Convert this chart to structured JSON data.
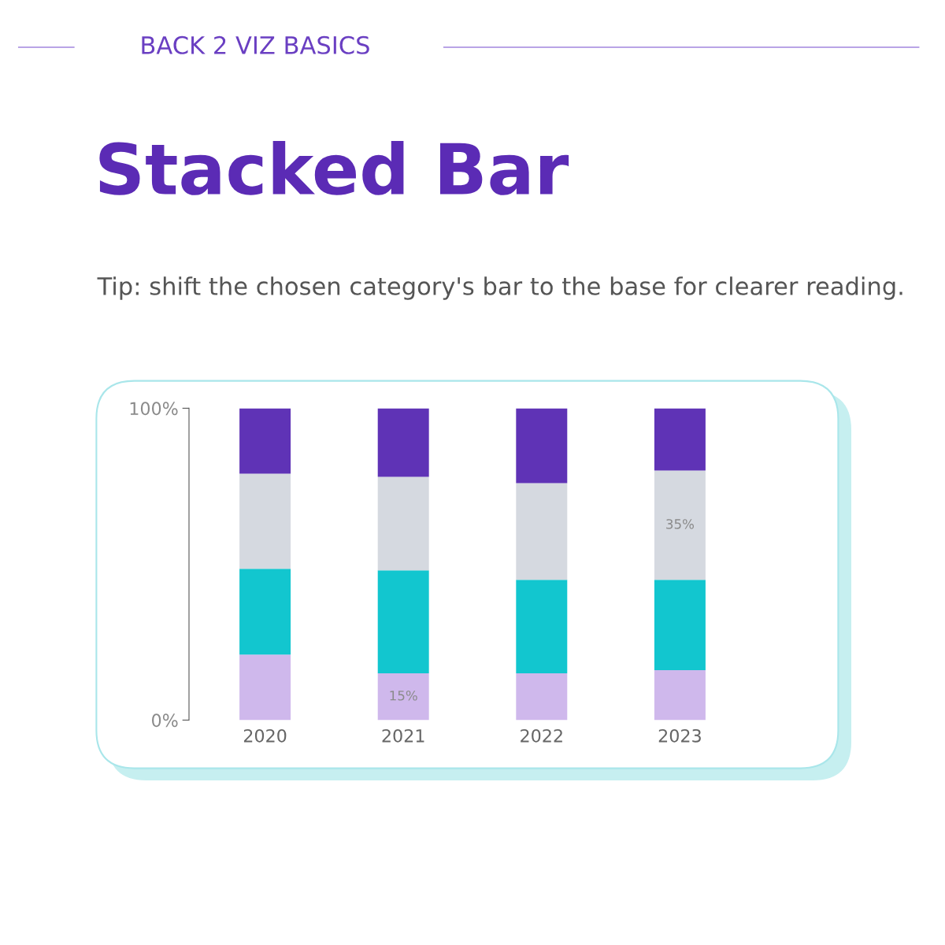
{
  "chart_data": {
    "type": "bar",
    "stacked": true,
    "title": "Stacked Bar",
    "subtitle": "Tip: shift the chosen category's bar to the base for clearer reading.",
    "annotations": [
      "BACK 2 VIZ BASICS"
    ],
    "categories": [
      "2020",
      "2021",
      "2022",
      "2023"
    ],
    "series": [
      {
        "color": "#cfb8ec",
        "values": [
          21,
          15,
          15,
          16
        ],
        "value_labels": [
          null,
          "15%",
          null,
          null
        ]
      },
      {
        "color": "#12c6cf",
        "values": [
          27.5,
          33,
          30,
          29
        ]
      },
      {
        "color": "#d5d9e0",
        "values": [
          30.5,
          30,
          31,
          35
        ],
        "value_labels": [
          null,
          null,
          null,
          "35%"
        ]
      },
      {
        "color": "#5f33b6",
        "values": [
          21,
          22,
          24,
          20
        ]
      }
    ],
    "ylim": [
      0,
      100
    ],
    "yticks": [
      {
        "value": 0,
        "label": "0%"
      },
      {
        "value": 100,
        "label": "100%"
      }
    ],
    "grid": false,
    "legend": false
  }
}
